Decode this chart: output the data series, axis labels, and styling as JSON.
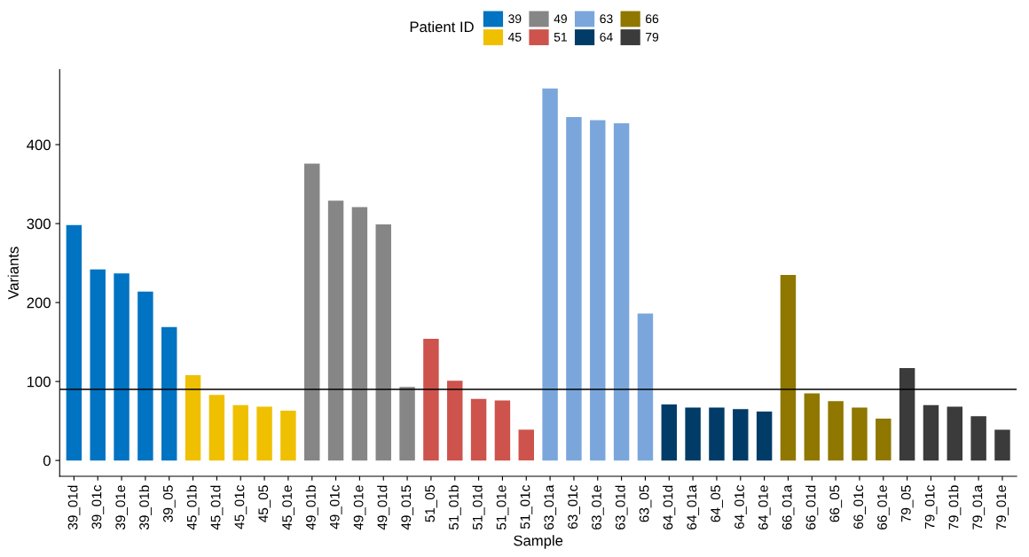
{
  "chart_data": {
    "type": "bar",
    "xlabel": "Sample",
    "ylabel": "Variants",
    "legend_title": "Patient ID",
    "categories": [
      "39_01d",
      "39_01c",
      "39_01e",
      "39_01b",
      "39_05",
      "45_01b",
      "45_01d",
      "45_01c",
      "45_05",
      "45_01e",
      "49_01b",
      "49_01c",
      "49_01e",
      "49_01d",
      "49_015",
      "51_05",
      "51_01b",
      "51_01d",
      "51_01e",
      "51_01c",
      "63_01a",
      "63_01c",
      "63_01e",
      "63_01d",
      "63_05",
      "64_01d",
      "64_01a",
      "64_05",
      "64_01c",
      "64_01e",
      "66_01a",
      "66_01d",
      "66_05",
      "66_01c",
      "66_01e",
      "79_05",
      "79_01c",
      "79_01b",
      "79_01a",
      "79_01e"
    ],
    "series": [
      {
        "name": "39",
        "color": "#0073c2",
        "values": [
          298,
          242,
          237,
          214,
          169,
          null,
          null,
          null,
          null,
          null,
          null,
          null,
          null,
          null,
          null,
          null,
          null,
          null,
          null,
          null,
          null,
          null,
          null,
          null,
          null,
          null,
          null,
          null,
          null,
          null,
          null,
          null,
          null,
          null,
          null,
          null,
          null,
          null,
          null,
          null
        ]
      },
      {
        "name": "45",
        "color": "#efc000",
        "values": [
          null,
          null,
          null,
          null,
          null,
          108,
          83,
          70,
          68,
          63,
          null,
          null,
          null,
          null,
          null,
          null,
          null,
          null,
          null,
          null,
          null,
          null,
          null,
          null,
          null,
          null,
          null,
          null,
          null,
          null,
          null,
          null,
          null,
          null,
          null,
          null,
          null,
          null,
          null,
          null
        ]
      },
      {
        "name": "49",
        "color": "#868686",
        "values": [
          null,
          null,
          null,
          null,
          null,
          null,
          null,
          null,
          null,
          null,
          376,
          329,
          321,
          299,
          93,
          null,
          null,
          null,
          null,
          null,
          null,
          null,
          null,
          null,
          null,
          null,
          null,
          null,
          null,
          null,
          null,
          null,
          null,
          null,
          null,
          null,
          null,
          null,
          null,
          null
        ]
      },
      {
        "name": "51",
        "color": "#cd534c",
        "values": [
          null,
          null,
          null,
          null,
          null,
          null,
          null,
          null,
          null,
          null,
          null,
          null,
          null,
          null,
          null,
          154,
          101,
          78,
          76,
          39,
          null,
          null,
          null,
          null,
          null,
          null,
          null,
          null,
          null,
          null,
          null,
          null,
          null,
          null,
          null,
          null,
          null,
          null,
          null,
          null
        ]
      },
      {
        "name": "63",
        "color": "#7aa6dc",
        "values": [
          null,
          null,
          null,
          null,
          null,
          null,
          null,
          null,
          null,
          null,
          null,
          null,
          null,
          null,
          null,
          null,
          null,
          null,
          null,
          null,
          471,
          435,
          431,
          427,
          186,
          null,
          null,
          null,
          null,
          null,
          null,
          null,
          null,
          null,
          null,
          null,
          null,
          null,
          null,
          null
        ]
      },
      {
        "name": "64",
        "color": "#003c67",
        "values": [
          null,
          null,
          null,
          null,
          null,
          null,
          null,
          null,
          null,
          null,
          null,
          null,
          null,
          null,
          null,
          null,
          null,
          null,
          null,
          null,
          null,
          null,
          null,
          null,
          null,
          71,
          67,
          67,
          65,
          62,
          null,
          null,
          null,
          null,
          null,
          null,
          null,
          null,
          null,
          null
        ]
      },
      {
        "name": "66",
        "color": "#8f7700",
        "values": [
          null,
          null,
          null,
          null,
          null,
          null,
          null,
          null,
          null,
          null,
          null,
          null,
          null,
          null,
          null,
          null,
          null,
          null,
          null,
          null,
          null,
          null,
          null,
          null,
          null,
          null,
          null,
          null,
          null,
          null,
          235,
          85,
          75,
          67,
          53,
          null,
          null,
          null,
          null,
          null
        ]
      },
      {
        "name": "79",
        "color": "#3b3b3b",
        "values": [
          null,
          null,
          null,
          null,
          null,
          null,
          null,
          null,
          null,
          null,
          null,
          null,
          null,
          null,
          null,
          null,
          null,
          null,
          null,
          null,
          null,
          null,
          null,
          null,
          null,
          null,
          null,
          null,
          null,
          null,
          null,
          null,
          null,
          null,
          null,
          117,
          70,
          68,
          56,
          39
        ]
      }
    ],
    "ylim": [
      -20,
      495
    ],
    "yticks": [
      0,
      100,
      200,
      300,
      400
    ],
    "ref_lines": [
      {
        "axis": "y",
        "value": 90,
        "color": "#000000"
      }
    ],
    "grid": false,
    "legend": "top"
  }
}
